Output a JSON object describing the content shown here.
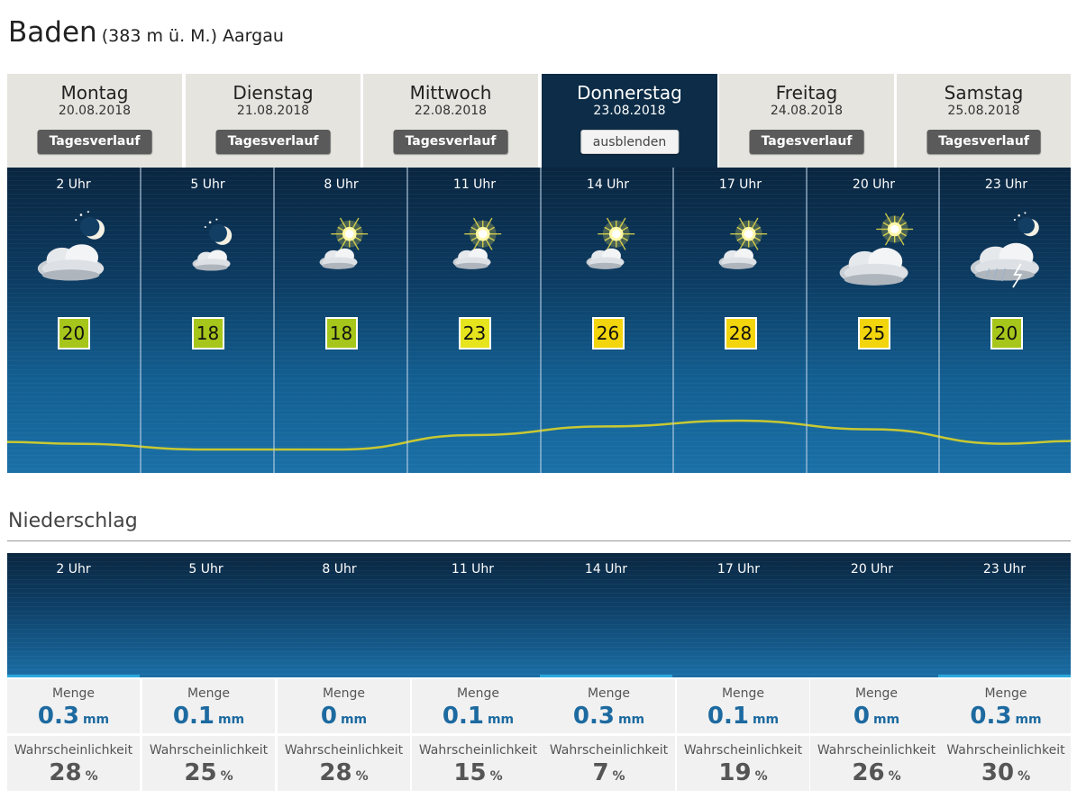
{
  "location": {
    "name": "Baden",
    "meta": "(383 m ü. M.) Aargau"
  },
  "days": [
    {
      "name": "Montag",
      "date": "20.08.2018",
      "button": "Tagesverlauf",
      "active": false
    },
    {
      "name": "Dienstag",
      "date": "21.08.2018",
      "button": "Tagesverlauf",
      "active": false
    },
    {
      "name": "Mittwoch",
      "date": "22.08.2018",
      "button": "Tagesverlauf",
      "active": false
    },
    {
      "name": "Donnerstag",
      "date": "23.08.2018",
      "button": "ausblenden",
      "active": true
    },
    {
      "name": "Freitag",
      "date": "24.08.2018",
      "button": "Tagesverlauf",
      "active": false
    },
    {
      "name": "Samstag",
      "date": "25.08.2018",
      "button": "Tagesverlauf",
      "active": false
    }
  ],
  "hourly": [
    {
      "time": "2 Uhr",
      "icon": "moon-cloud-icon",
      "temp": "20",
      "temp_color": "#a7c61b"
    },
    {
      "time": "5 Uhr",
      "icon": "moon-small-cloud-icon",
      "temp": "18",
      "temp_color": "#a7c61b"
    },
    {
      "time": "8 Uhr",
      "icon": "sun-small-cloud-icon",
      "temp": "18",
      "temp_color": "#a7c61b"
    },
    {
      "time": "11 Uhr",
      "icon": "sun-small-cloud-icon",
      "temp": "23",
      "temp_color": "#e6e41c"
    },
    {
      "time": "14 Uhr",
      "icon": "sun-small-cloud-icon",
      "temp": "26",
      "temp_color": "#f2d50c"
    },
    {
      "time": "17 Uhr",
      "icon": "sun-small-cloud-icon",
      "temp": "28",
      "temp_color": "#f2d50c"
    },
    {
      "time": "20 Uhr",
      "icon": "sun-cloud-icon",
      "temp": "25",
      "temp_color": "#f2d50c"
    },
    {
      "time": "23 Uhr",
      "icon": "moon-thunderstorm-icon",
      "temp": "20",
      "temp_color": "#a7c61b"
    }
  ],
  "precipitation": {
    "title": "Niederschlag",
    "amount_label": "Menge",
    "amount_unit": "mm",
    "probability_label": "Wahrscheinlichkeit",
    "probability_unit": "%",
    "entries": [
      {
        "time": "2 Uhr",
        "amount": "0.3",
        "probability": "28",
        "has_bar": true
      },
      {
        "time": "5 Uhr",
        "amount": "0.1",
        "probability": "25",
        "has_bar": false
      },
      {
        "time": "8 Uhr",
        "amount": "0",
        "probability": "28",
        "has_bar": false
      },
      {
        "time": "11 Uhr",
        "amount": "0.1",
        "probability": "15",
        "has_bar": false
      },
      {
        "time": "14 Uhr",
        "amount": "0.3",
        "probability": "7",
        "has_bar": true
      },
      {
        "time": "17 Uhr",
        "amount": "0.1",
        "probability": "19",
        "has_bar": false
      },
      {
        "time": "20 Uhr",
        "amount": "0",
        "probability": "26",
        "has_bar": false
      },
      {
        "time": "23 Uhr",
        "amount": "0.3",
        "probability": "30",
        "has_bar": true
      }
    ]
  },
  "colors": {
    "accent": "#2aa8dc",
    "panel_dark": "#0a2640",
    "curve": "#c8c832"
  }
}
